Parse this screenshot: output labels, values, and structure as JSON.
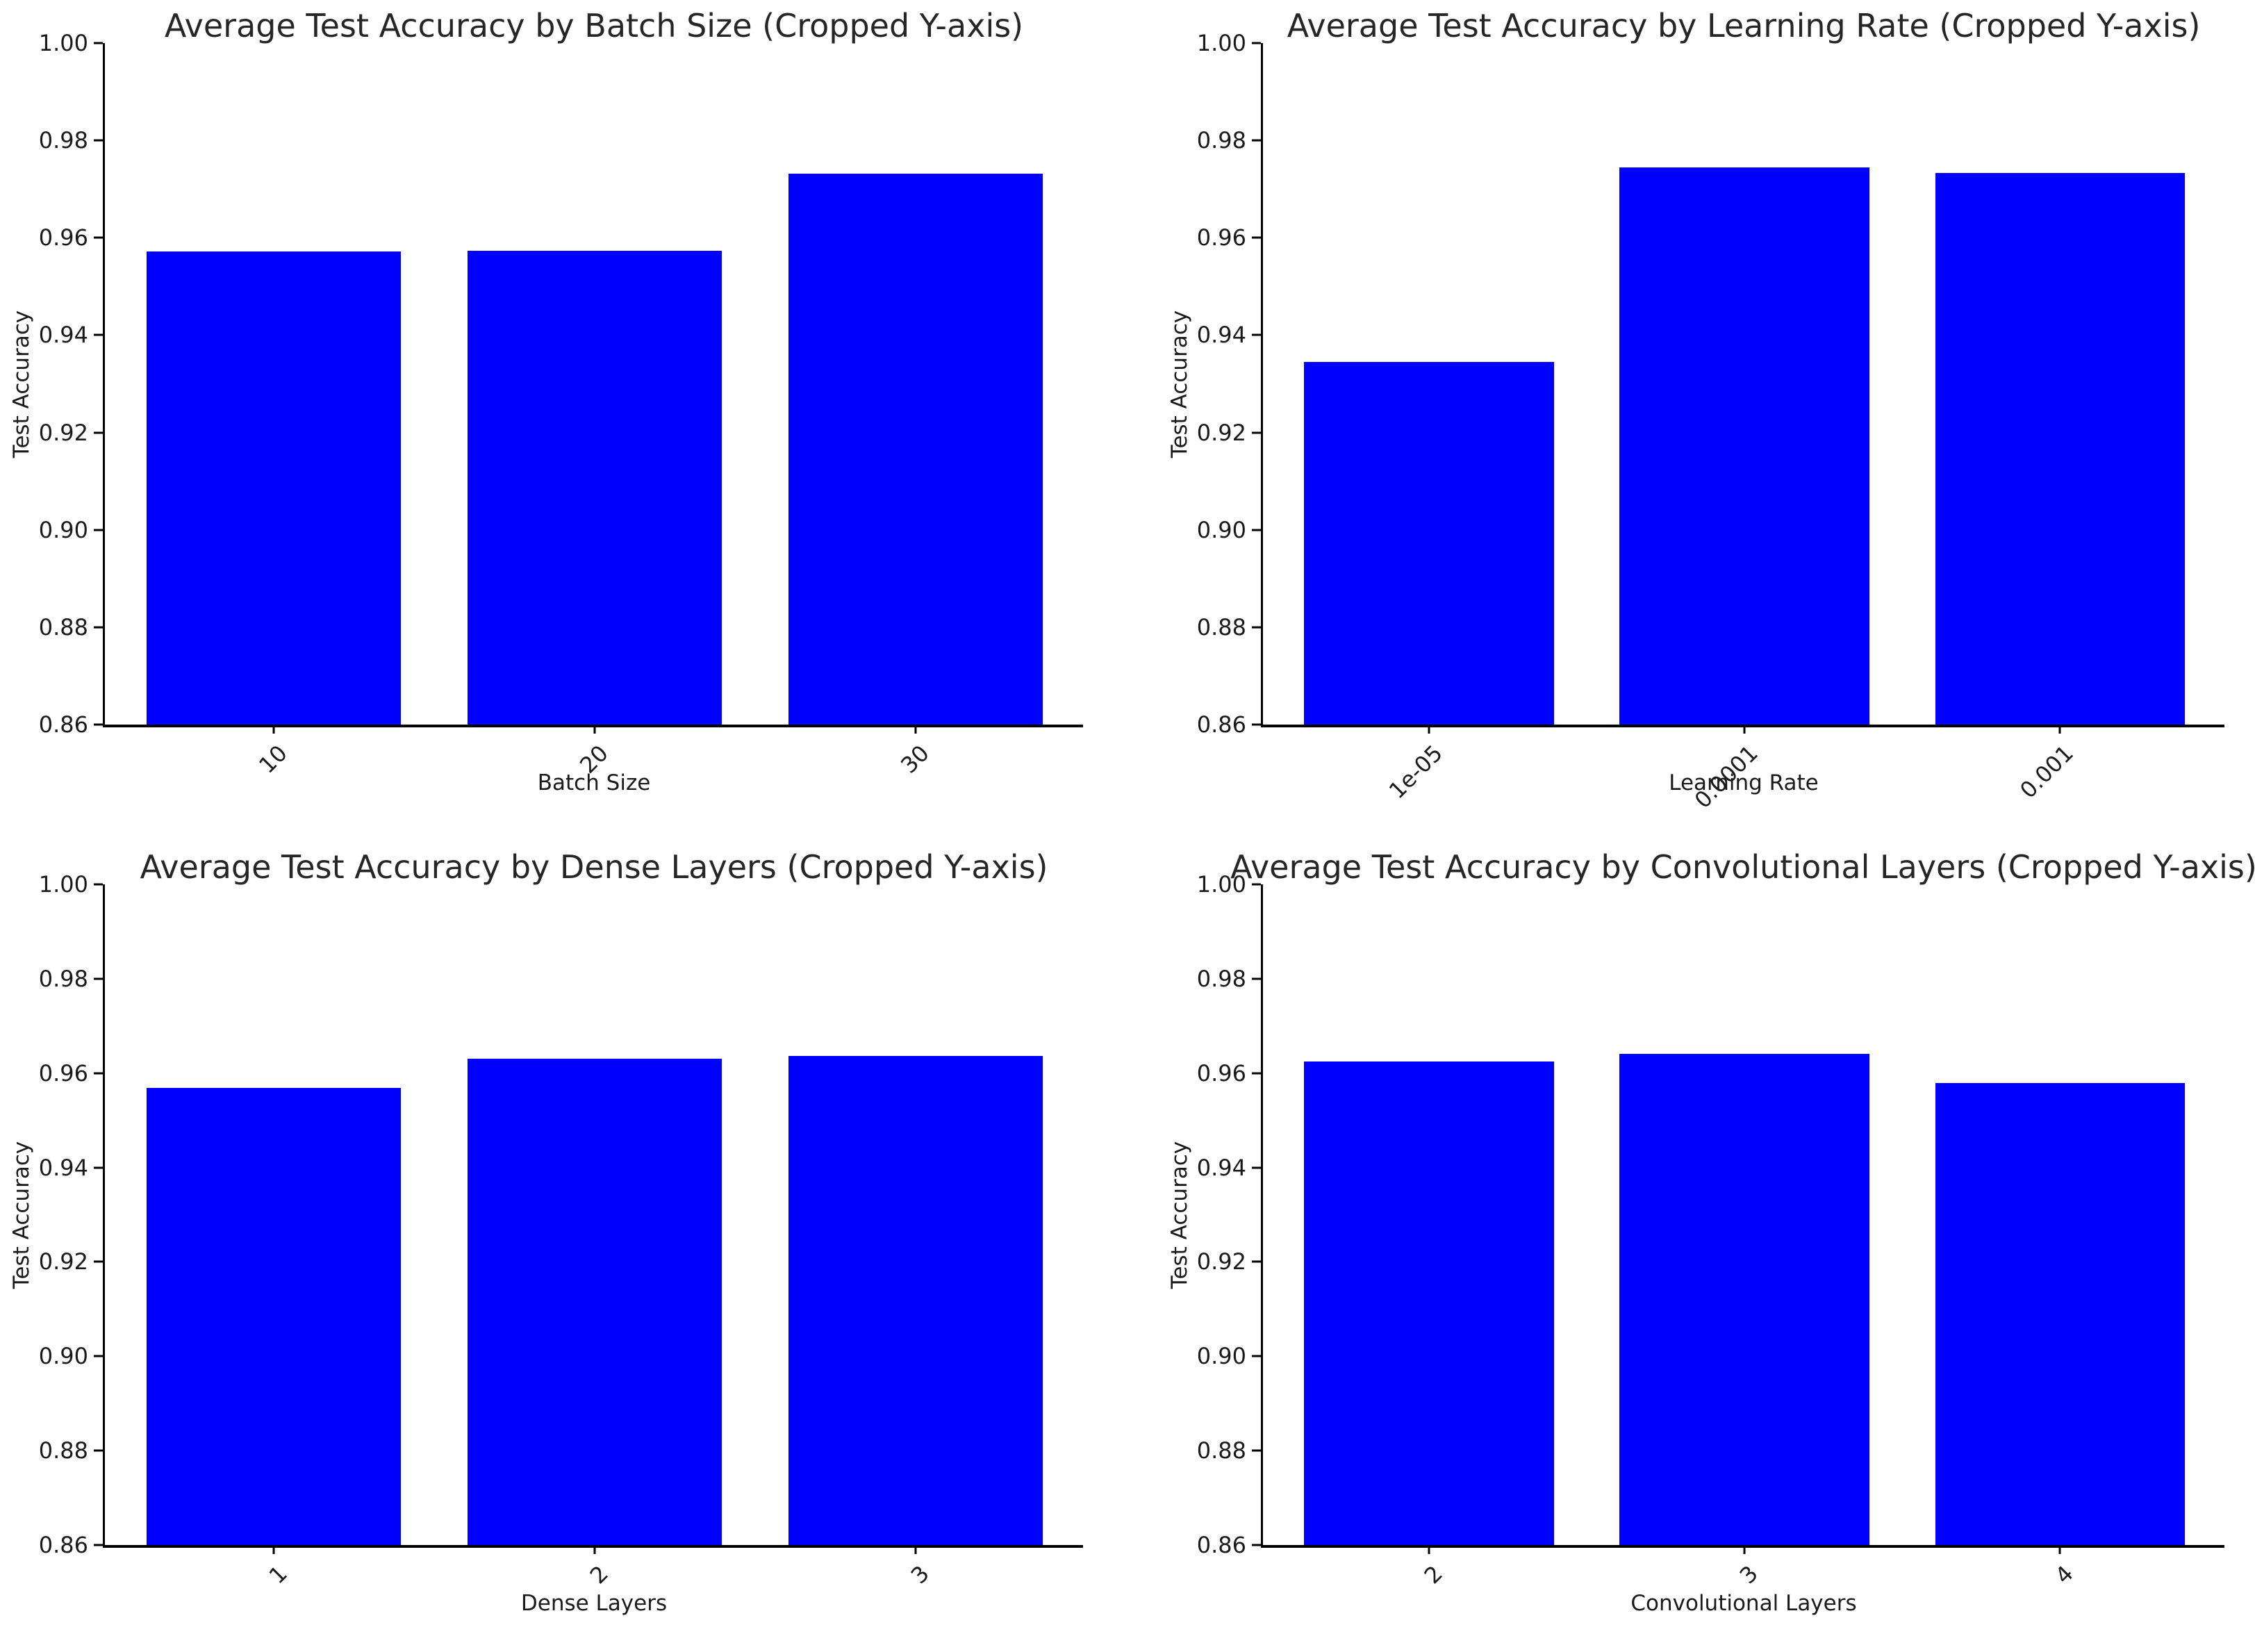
{
  "figure": {
    "background_color": "#ffffff",
    "bar_color": "#0000ff",
    "axis_color": "#000000",
    "text_color": "#1a1a1a",
    "layout": "2x2 grid of bar charts"
  },
  "chart_data": [
    {
      "type": "bar",
      "title": "Average Test Accuracy by Batch Size (Cropped Y-axis)",
      "xlabel": "Batch Size",
      "ylabel": "Test Accuracy",
      "categories": [
        "10",
        "20",
        "30"
      ],
      "values": [
        0.9572,
        0.9573,
        0.9732
      ],
      "ylim": [
        0.86,
        1.0
      ],
      "yticks": [
        "1.00",
        "0.98",
        "0.96",
        "0.94",
        "0.92",
        "0.90",
        "0.88",
        "0.86"
      ],
      "xtick_rotation_deg": 45,
      "grid": false,
      "legend": "none",
      "bar_color": "#0000ff"
    },
    {
      "type": "bar",
      "title": "Average Test Accuracy by Learning Rate (Cropped Y-axis)",
      "xlabel": "Learning Rate",
      "ylabel": "Test Accuracy",
      "categories": [
        "1e-05",
        "0.0001",
        "0.001"
      ],
      "values": [
        0.9345,
        0.9744,
        0.9733
      ],
      "ylim": [
        0.86,
        1.0
      ],
      "yticks": [
        "1.00",
        "0.98",
        "0.96",
        "0.94",
        "0.92",
        "0.90",
        "0.88",
        "0.86"
      ],
      "xtick_rotation_deg": 45,
      "grid": false,
      "legend": "none",
      "bar_color": "#0000ff"
    },
    {
      "type": "bar",
      "title": "Average Test Accuracy by Dense Layers (Cropped Y-axis)",
      "xlabel": "Dense Layers",
      "ylabel": "Test Accuracy",
      "categories": [
        "1",
        "2",
        "3"
      ],
      "values": [
        0.9568,
        0.9631,
        0.9637
      ],
      "ylim": [
        0.86,
        1.0
      ],
      "yticks": [
        "1.00",
        "0.98",
        "0.96",
        "0.94",
        "0.92",
        "0.90",
        "0.88",
        "0.86"
      ],
      "xtick_rotation_deg": 45,
      "grid": false,
      "legend": "none",
      "bar_color": "#0000ff"
    },
    {
      "type": "bar",
      "title": "Average Test Accuracy by Convolutional Layers (Cropped Y-axis)",
      "xlabel": "Convolutional Layers",
      "ylabel": "Test Accuracy",
      "categories": [
        "2",
        "3",
        "4"
      ],
      "values": [
        0.9625,
        0.9641,
        0.9579
      ],
      "ylim": [
        0.86,
        1.0
      ],
      "yticks": [
        "1.00",
        "0.98",
        "0.96",
        "0.94",
        "0.92",
        "0.90",
        "0.88",
        "0.86"
      ],
      "xtick_rotation_deg": 45,
      "grid": false,
      "legend": "none",
      "bar_color": "#0000ff"
    }
  ]
}
